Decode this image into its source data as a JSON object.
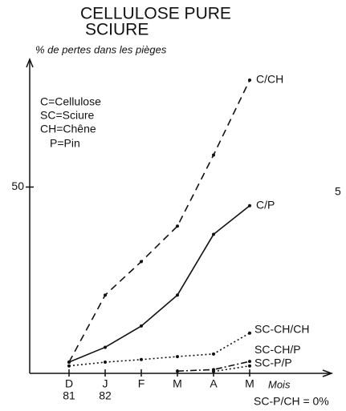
{
  "chart_data": {
    "type": "line",
    "title": "CELLULOSE PURE",
    "title_line2": "SCIURE",
    "y_label": "% de pertes dans les pièges",
    "x_label": "Mois",
    "key": [
      "C=Cellulose",
      "SC=Sciure",
      "CH=Chêne",
      "P=Pin"
    ],
    "annotation": "SC-P/CH = 0%",
    "edge_fragment": "5",
    "categories": [
      "D",
      "J",
      "F",
      "M",
      "A",
      "M"
    ],
    "category_years": [
      "81",
      "82"
    ],
    "ylim": [
      0,
      83
    ],
    "yticks": [
      50
    ],
    "series": [
      {
        "name": "C/CH",
        "color": "#111",
        "style": "dashed",
        "values": [
          3,
          21,
          30,
          39.5,
          58.6,
          78.7
        ]
      },
      {
        "name": "C/P",
        "color": "#111",
        "style": "solid",
        "values": [
          3,
          7,
          12.7,
          21,
          37.3,
          45
        ]
      },
      {
        "name": "SC-CH/CH",
        "color": "#111",
        "style": "dotted",
        "values": [
          2,
          3,
          3.7,
          4.5,
          5.2,
          10.8
        ]
      },
      {
        "name": "SC-CH/P",
        "color": "#111",
        "style": "dashdot",
        "values": [
          null,
          null,
          null,
          0.6,
          1,
          3.2
        ]
      },
      {
        "name": "SC-P/P",
        "color": "#111",
        "style": "dotted",
        "values": [
          null,
          null,
          null,
          null,
          0.5,
          2
        ]
      }
    ]
  }
}
